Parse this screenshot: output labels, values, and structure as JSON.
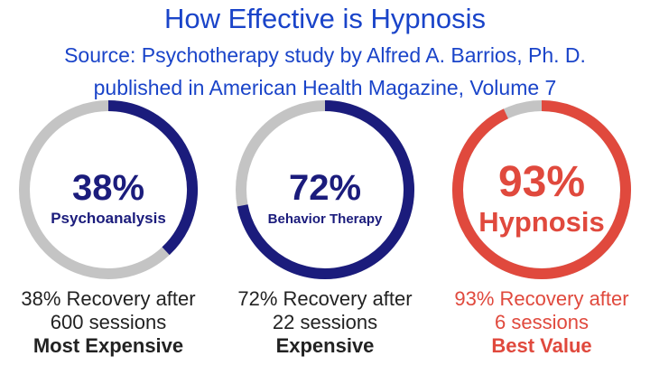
{
  "title": "How Effective is Hypnosis",
  "subtitle_line1": "Source: Psychotherapy study by Alfred A. Barrios, Ph. D.",
  "subtitle_line2": "published in American Health Magazine, Volume 7",
  "colors": {
    "title": "#1a44c9",
    "ring_track": "#c4c4c4",
    "navy": "#1b1c7c",
    "red": "#e0493d",
    "caption_dark": "#222222"
  },
  "chart_data": {
    "type": "pie",
    "series": [
      {
        "name": "Psychoanalysis",
        "value": 38,
        "value_label": "38%",
        "color": "#1b1c7c",
        "caption_line1": "38% Recovery after",
        "caption_line2": "600 sessions",
        "caption_emphasis": "Most Expensive"
      },
      {
        "name": "Behavior Therapy",
        "value": 72,
        "value_label": "72%",
        "color": "#1b1c7c",
        "caption_line1": "72% Recovery after",
        "caption_line2": "22 sessions",
        "caption_emphasis": "Expensive"
      },
      {
        "name": "Hypnosis",
        "value": 93,
        "value_label": "93%",
        "color": "#e0493d",
        "caption_line1": "93% Recovery after",
        "caption_line2": "6 sessions",
        "caption_emphasis": "Best Value"
      }
    ]
  }
}
